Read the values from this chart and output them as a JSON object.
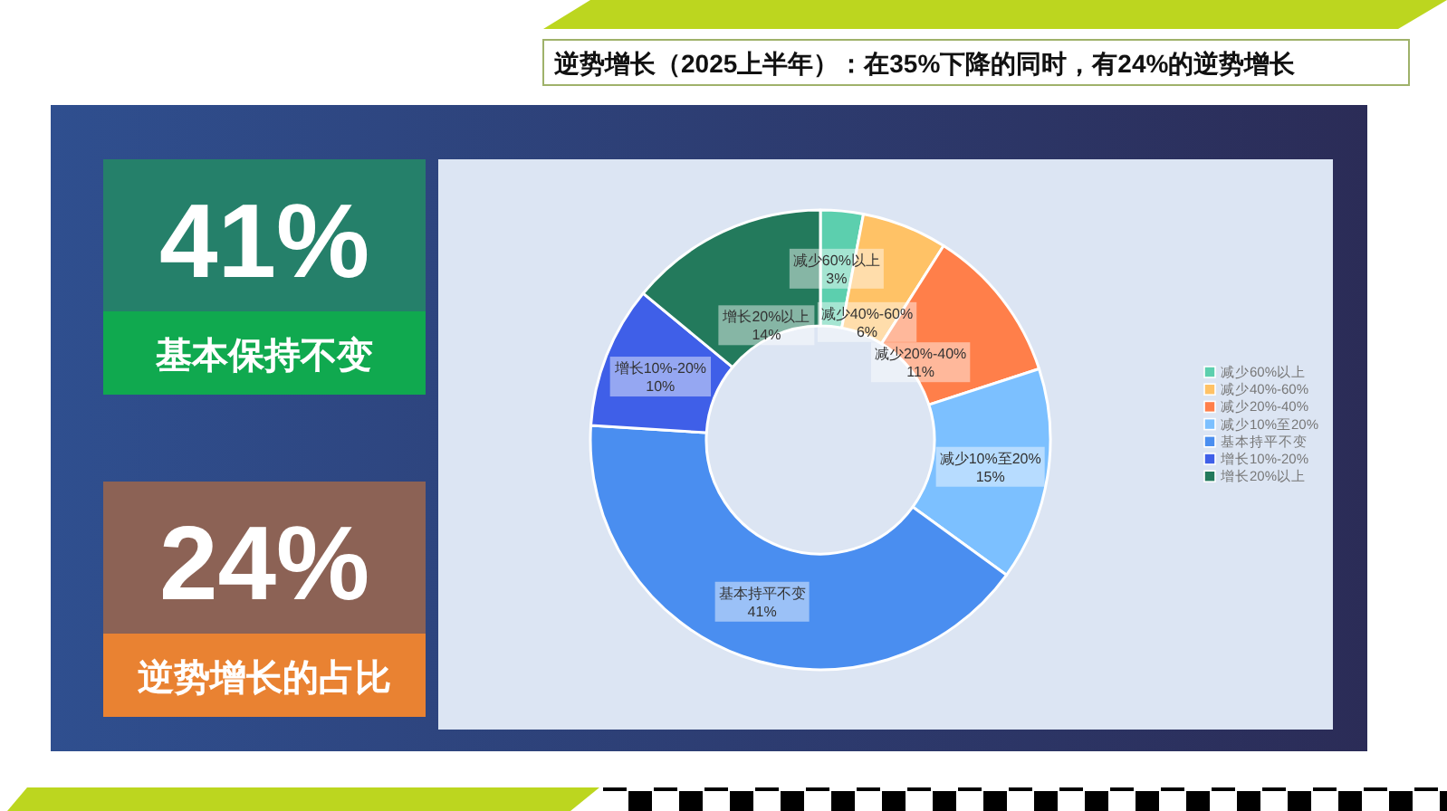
{
  "chart_data": [
    {
      "type": "other",
      "annotations": [
        "41%",
        "基本保持不变",
        "24%",
        "逆势增长的占比"
      ]
    },
    {
      "type": "donut",
      "title": "逆势增长（2025上半年）：在35%下降的同时，有24%的逆势增长",
      "categories": [
        "减少60%以上",
        "减少40%-60%",
        "减少20%-40%",
        "减少10%至20%",
        "基本持平不变",
        "增长10%-20%",
        "增长20%以上"
      ],
      "values": [
        3,
        6,
        11,
        15,
        41,
        10,
        14
      ],
      "value_labels": [
        "3%",
        "6%",
        "11%",
        "15%",
        "41%",
        "10%",
        "14%"
      ],
      "colors": [
        "#5ccfae",
        "#ffc266",
        "#ff7f4a",
        "#7cc0ff",
        "#4a8ef0",
        "#3f5fe8",
        "#237a5c"
      ],
      "legend": "right"
    }
  ]
}
